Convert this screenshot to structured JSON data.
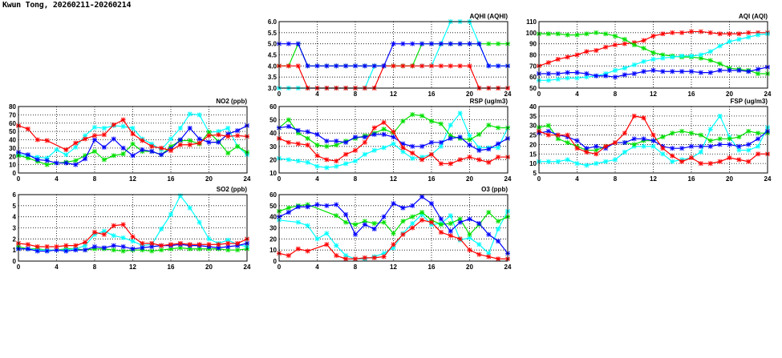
{
  "title": "Kwun Tong, 20260211-20260214",
  "series_colors": [
    "#ff0000",
    "#00e000",
    "#0000ff",
    "#00ffff"
  ],
  "chart_data": [
    {
      "id": "aqhi",
      "type": "line",
      "title": "AQHI (AQHI)",
      "xlim": [
        0,
        24
      ],
      "xticks": [
        0,
        4,
        8,
        12,
        16,
        20,
        24
      ],
      "ylim": [
        3,
        6
      ],
      "yticks": [
        "3.0",
        "3.5",
        "4.0",
        "4.5",
        "5.0",
        "5.5",
        "6.0"
      ],
      "grid": true,
      "series": [
        {
          "color": "#00ffff",
          "values": [
            3,
            3,
            3,
            3,
            3,
            3,
            3,
            3,
            3,
            3,
            4,
            4,
            4,
            4,
            4,
            4,
            4,
            5,
            6,
            6,
            6,
            5,
            4,
            4,
            4
          ]
        },
        {
          "color": "#00e000",
          "values": [
            4,
            4,
            5,
            4,
            4,
            4,
            4,
            4,
            4,
            4,
            4,
            4,
            4,
            4,
            4,
            5,
            5,
            5,
            5,
            5,
            5,
            5,
            5,
            5,
            5
          ]
        },
        {
          "color": "#ff0000",
          "values": [
            4,
            4,
            4,
            3,
            3,
            3,
            3,
            3,
            3,
            3,
            3,
            4,
            4,
            4,
            4,
            4,
            4,
            4,
            4,
            4,
            4,
            3,
            3,
            3,
            3
          ]
        },
        {
          "color": "#0000ff",
          "values": [
            5,
            5,
            5,
            4,
            4,
            4,
            4,
            4,
            4,
            4,
            4,
            4,
            5,
            5,
            5,
            5,
            5,
            5,
            5,
            5,
            5,
            5,
            4,
            4,
            4
          ]
        }
      ]
    },
    {
      "id": "aqi",
      "type": "line",
      "title": "AQI (AQI)",
      "xlim": [
        0,
        24
      ],
      "xticks": [
        0,
        4,
        8,
        12,
        16,
        20,
        24
      ],
      "ylim": [
        50,
        110
      ],
      "yticks": [
        "50",
        "60",
        "70",
        "80",
        "90",
        "100",
        "110"
      ],
      "grid": true,
      "series": [
        {
          "color": "#ff0000",
          "values": [
            70,
            73,
            76,
            78,
            80,
            83,
            84,
            87,
            89,
            90,
            91,
            93,
            97,
            99,
            100,
            100,
            101,
            101,
            100,
            99,
            99,
            99,
            100,
            100,
            100
          ]
        },
        {
          "color": "#00e000",
          "values": [
            99,
            99,
            99,
            98,
            98,
            99,
            100,
            99,
            97,
            94,
            89,
            86,
            82,
            80,
            79,
            78,
            78,
            77,
            75,
            72,
            68,
            67,
            66,
            63,
            63
          ]
        },
        {
          "color": "#00ffff",
          "values": [
            57,
            57,
            58,
            59,
            59,
            60,
            61,
            63,
            66,
            68,
            71,
            74,
            76,
            77,
            78,
            79,
            79,
            80,
            83,
            88,
            92,
            94,
            96,
            98,
            99
          ]
        },
        {
          "color": "#0000ff",
          "values": [
            63,
            63,
            63,
            64,
            64,
            63,
            61,
            61,
            60,
            62,
            63,
            65,
            66,
            65,
            65,
            65,
            65,
            64,
            64,
            66,
            66,
            66,
            65,
            67,
            69
          ]
        }
      ]
    },
    {
      "id": "no2",
      "type": "line",
      "title": "NO2 (ppb)",
      "xlim": [
        0,
        24
      ],
      "xticks": [
        0,
        4,
        8,
        12,
        16,
        20,
        24
      ],
      "ylim": [
        0,
        80
      ],
      "yticks": [
        "0",
        "10",
        "20",
        "30",
        "40",
        "50",
        "60",
        "70",
        "80"
      ],
      "grid": true,
      "series": [
        {
          "color": "#00ffff",
          "values": [
            22,
            21,
            19,
            18,
            28,
            22,
            31,
            45,
            55,
            54,
            57,
            56,
            54,
            41,
            35,
            28,
            41,
            54,
            71,
            70,
            49,
            50,
            54,
            32,
            22
          ]
        },
        {
          "color": "#00e000",
          "values": [
            21,
            18,
            14,
            10,
            12,
            13,
            15,
            21,
            26,
            16,
            21,
            23,
            35,
            26,
            26,
            22,
            32,
            39,
            39,
            35,
            49,
            38,
            24,
            32,
            25
          ]
        },
        {
          "color": "#0000ff",
          "values": [
            25,
            22,
            16,
            15,
            12,
            12,
            10,
            17,
            40,
            31,
            41,
            30,
            21,
            28,
            26,
            22,
            29,
            40,
            54,
            41,
            37,
            37,
            47,
            51,
            57
          ]
        },
        {
          "color": "#ff0000",
          "values": [
            57,
            53,
            40,
            39,
            null,
            28,
            36,
            41,
            45,
            46,
            58,
            64,
            47,
            39,
            32,
            30,
            27,
            34,
            34,
            36,
            45,
            46,
            44,
            45,
            44
          ]
        }
      ]
    },
    {
      "id": "rsp",
      "type": "line",
      "title": "RSP (ug/m3)",
      "xlim": [
        0,
        24
      ],
      "xticks": [
        0,
        4,
        8,
        12,
        16,
        20,
        24
      ],
      "ylim": [
        10,
        60
      ],
      "yticks": [
        "10",
        "20",
        "30",
        "40",
        "50",
        "60"
      ],
      "grid": true,
      "series": [
        {
          "color": "#00ffff",
          "values": [
            21,
            20,
            19,
            18,
            15,
            14,
            15,
            17,
            19,
            24,
            27,
            29,
            32,
            26,
            21,
            22,
            24,
            30,
            46,
            55,
            38,
            29,
            29,
            29,
            44
          ]
        },
        {
          "color": "#00e000",
          "values": [
            44,
            50,
            40,
            36,
            31,
            30,
            31,
            34,
            36,
            38,
            40,
            43,
            40,
            49,
            54,
            53,
            49,
            47,
            38,
            36,
            35,
            39,
            46,
            44,
            44
          ]
        },
        {
          "color": "#0000ff",
          "values": [
            44,
            45,
            42,
            41,
            39,
            34,
            34,
            33,
            37,
            37,
            39,
            39,
            37,
            32,
            30,
            30,
            33,
            33,
            36,
            37,
            31,
            27,
            28,
            32,
            36
          ]
        },
        {
          "color": "#ff0000",
          "values": [
            36,
            33,
            32,
            31,
            23,
            20,
            19,
            24,
            27,
            33,
            44,
            48,
            41,
            29,
            25,
            20,
            24,
            17,
            17,
            20,
            22,
            20,
            18,
            22,
            22
          ]
        }
      ]
    },
    {
      "id": "fsp",
      "type": "line",
      "title": "FSP (ug/m3)",
      "xlim": [
        0,
        24
      ],
      "xticks": [
        0,
        4,
        8,
        12,
        16,
        20,
        24
      ],
      "ylim": [
        5,
        40
      ],
      "yticks": [
        "5",
        "10",
        "15",
        "20",
        "25",
        "30",
        "35",
        "40"
      ],
      "grid": true,
      "series": [
        {
          "color": "#00ffff",
          "values": [
            11,
            11,
            11,
            12,
            10,
            9,
            10,
            11,
            12,
            16,
            19,
            19,
            19,
            15,
            11,
            12,
            13,
            16,
            28,
            35,
            24,
            17,
            17,
            19,
            29
          ]
        },
        {
          "color": "#00e000",
          "values": [
            29,
            30,
            23,
            21,
            19,
            17,
            17,
            19,
            21,
            21,
            20,
            22,
            22,
            24,
            26,
            27,
            26,
            25,
            22,
            23,
            23,
            24,
            27,
            26,
            26
          ]
        },
        {
          "color": "#0000ff",
          "values": [
            26,
            27,
            25,
            24,
            22,
            18,
            19,
            18,
            21,
            21,
            23,
            23,
            22,
            19,
            18,
            18,
            19,
            19,
            19,
            20,
            20,
            19,
            20,
            23,
            27
          ]
        },
        {
          "color": "#ff0000",
          "values": [
            27,
            25,
            25,
            25,
            18,
            16,
            15,
            19,
            21,
            26,
            35,
            34,
            25,
            18,
            14,
            11,
            13,
            10,
            10,
            11,
            13,
            12,
            11,
            15,
            15
          ]
        }
      ]
    },
    {
      "id": "so2",
      "type": "line",
      "title": "SO2 (ppb)",
      "xlim": [
        0,
        24
      ],
      "xticks": [
        0,
        4,
        8,
        12,
        16,
        20,
        24
      ],
      "ylim": [
        0,
        6
      ],
      "yticks": [
        "0",
        "1",
        "2",
        "3",
        "4",
        "5",
        "6"
      ],
      "grid": true,
      "series": [
        {
          "color": "#00e000",
          "values": [
            1.3,
            1.1,
            1.1,
            1.0,
            1.0,
            1.1,
            1.1,
            1.0,
            1.1,
            1.1,
            1.0,
            0.9,
            1.0,
            1.0,
            0.9,
            1.0,
            1.1,
            1.2,
            1.1,
            1.1,
            1.1,
            1.1,
            1.0,
            1.0,
            1.1
          ]
        },
        {
          "color": "#00ffff",
          "values": [
            1.1,
            1.1,
            1.0,
            1.0,
            1.0,
            1.0,
            1.1,
            1.4,
            2.4,
            2.7,
            2.3,
            2.1,
            1.8,
            1.4,
            1.5,
            2.9,
            4.2,
            5.9,
            4.8,
            3.5,
            2.0,
            1.6,
            1.9,
            1.5,
            1.3
          ]
        },
        {
          "color": "#0000ff",
          "values": [
            1.1,
            1.1,
            0.9,
            0.9,
            1.0,
            0.9,
            1.0,
            1.0,
            1.3,
            1.2,
            1.4,
            1.3,
            1.1,
            1.2,
            1.3,
            1.4,
            1.4,
            1.5,
            1.4,
            1.4,
            1.3,
            1.2,
            1.3,
            1.4,
            1.6
          ]
        },
        {
          "color": "#ff0000",
          "values": [
            1.6,
            1.5,
            1.3,
            1.3,
            1.3,
            1.4,
            1.4,
            1.7,
            2.6,
            2.4,
            3.2,
            3.3,
            2.2,
            1.6,
            1.6,
            1.4,
            1.5,
            1.6,
            1.5,
            1.5,
            1.5,
            1.5,
            1.6,
            1.6,
            2.0
          ]
        }
      ]
    },
    {
      "id": "o3",
      "type": "line",
      "title": "O3 (ppb)",
      "xlim": [
        0,
        24
      ],
      "xticks": [
        0,
        4,
        8,
        12,
        16,
        20,
        24
      ],
      "ylim": [
        0,
        60
      ],
      "yticks": [
        "0",
        "10",
        "20",
        "30",
        "40",
        "50",
        "60"
      ],
      "grid": true,
      "series": [
        {
          "color": "#00ffff",
          "values": [
            37,
            null,
            35,
            32,
            20,
            25,
            14,
            5,
            2,
            2,
            4,
            7,
            12,
            25,
            34,
            42,
            33,
            34,
            41,
            19,
            21,
            15,
            7,
            29,
            45
          ]
        },
        {
          "color": "#00e000",
          "values": [
            45,
            48,
            50,
            51,
            null,
            null,
            41,
            35,
            33,
            36,
            34,
            35,
            25,
            36,
            40,
            44,
            37,
            33,
            34,
            38,
            24,
            33,
            44,
            36,
            40
          ]
        },
        {
          "color": "#ff0000",
          "values": [
            7,
            5,
            11,
            9,
            null,
            15,
            5,
            2,
            2,
            3,
            3,
            4,
            15,
            24,
            30,
            37,
            35,
            26,
            23,
            20,
            10,
            6,
            4,
            2,
            2
          ]
        },
        {
          "color": "#0000ff",
          "values": [
            40,
            44,
            49,
            49,
            51,
            50,
            51,
            42,
            24,
            33,
            29,
            40,
            52,
            48,
            50,
            58,
            52,
            38,
            27,
            35,
            38,
            34,
            24,
            18,
            7
          ]
        }
      ]
    }
  ]
}
